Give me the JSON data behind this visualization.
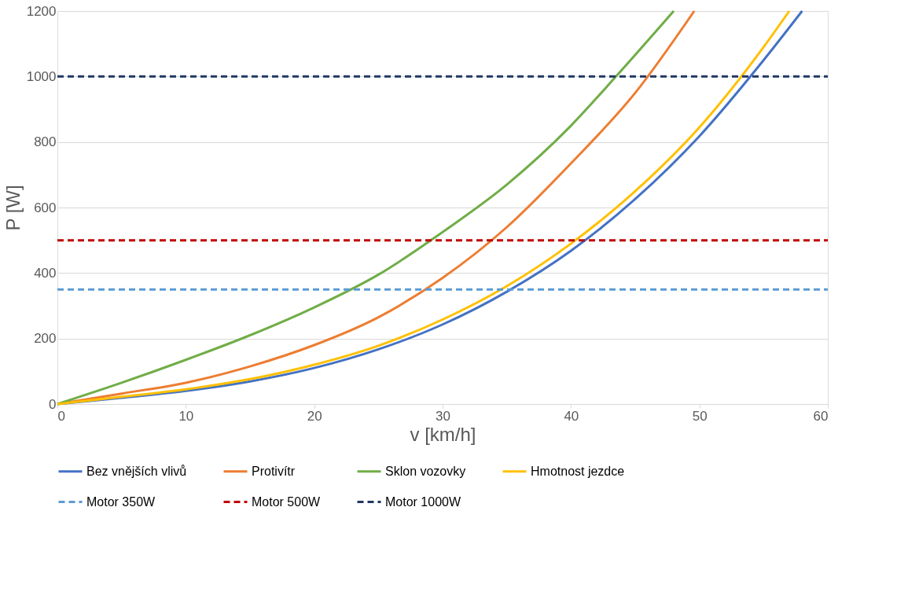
{
  "chart_data": {
    "type": "line",
    "xlabel": "v [km/h]",
    "ylabel": "P [W]",
    "xlim": [
      0,
      60
    ],
    "xticks": [
      0,
      10,
      20,
      30,
      40,
      50,
      60
    ],
    "ylim": [
      0,
      1200
    ],
    "yticks": [
      0,
      200,
      400,
      600,
      800,
      1000,
      1200
    ],
    "grid": "y",
    "legend": "bottom",
    "marker": "none",
    "series": [
      {
        "name": "Bez vnějších vlivů",
        "color": "#4472c4",
        "line_style": "solid",
        "x": [
          0,
          5,
          10,
          15,
          20,
          25,
          30,
          35,
          40,
          45,
          50,
          55,
          58
        ],
        "values": [
          0,
          19,
          40,
          69,
          110,
          167,
          243,
          343,
          468,
          626,
          818,
          1050,
          1200
        ]
      },
      {
        "name": "Protivítr",
        "color": "#ed7d31",
        "line_style": "solid",
        "x": [
          0,
          5,
          10,
          15,
          20,
          25,
          30,
          35,
          40,
          45,
          49.6
        ],
        "values": [
          0,
          32,
          65,
          115,
          180,
          265,
          385,
          540,
          735,
          950,
          1200
        ]
      },
      {
        "name": "Sklon vozovky",
        "color": "#70ad47",
        "line_style": "solid",
        "x": [
          0,
          5,
          10,
          15,
          20,
          25,
          30,
          35,
          40,
          43.5,
          48
        ],
        "values": [
          0,
          65,
          135,
          210,
          295,
          395,
          525,
          670,
          850,
          1000,
          1200
        ]
      },
      {
        "name": "Hmotnost jezdce",
        "color": "#ffc000",
        "line_style": "solid",
        "x": [
          0,
          5,
          10,
          15,
          20,
          25,
          30,
          35,
          40,
          45,
          50,
          55,
          57
        ],
        "values": [
          0,
          22,
          45,
          76,
          120,
          178,
          258,
          360,
          490,
          650,
          845,
          1090,
          1200
        ]
      },
      {
        "name": "Motor 350W",
        "color": "#5b9bd5",
        "line_style": "dashed",
        "x": [
          0,
          60
        ],
        "values": [
          350,
          350
        ]
      },
      {
        "name": "Motor 500W",
        "color": "#c00000",
        "line_style": "dashed",
        "x": [
          0,
          60
        ],
        "values": [
          500,
          500
        ]
      },
      {
        "name": "Motor 1000W",
        "color": "#203864",
        "line_style": "dashed",
        "x": [
          0,
          60
        ],
        "values": [
          1000,
          1000
        ]
      }
    ]
  }
}
